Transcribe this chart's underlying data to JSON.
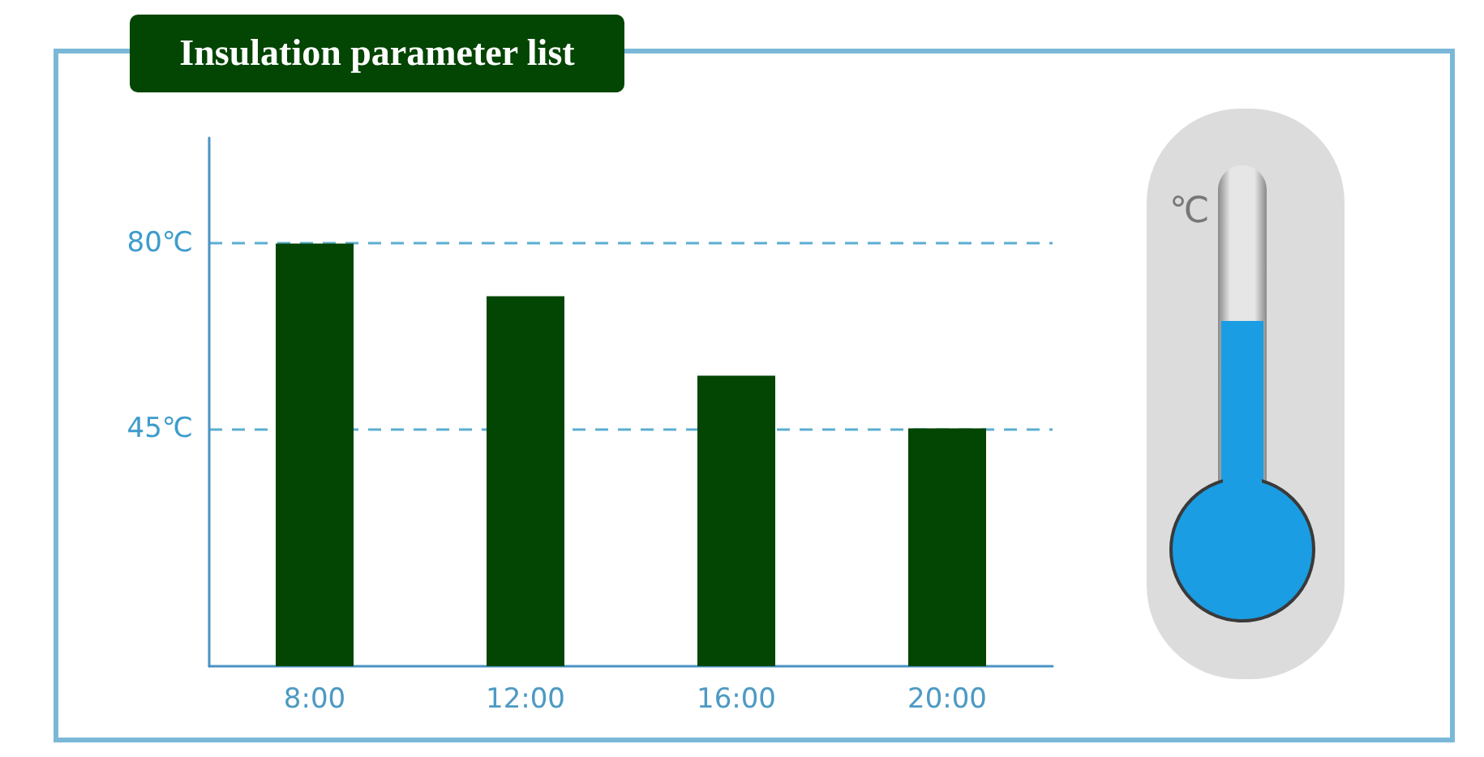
{
  "chart_data": {
    "type": "bar",
    "title": "Insulation parameter list",
    "categories": [
      "8:00",
      "12:00",
      "16:00",
      "20:00"
    ],
    "values": [
      80,
      70,
      55,
      45
    ],
    "color": "#034503",
    "ylim": [
      0,
      100
    ],
    "yticks": [
      {
        "value": 45,
        "label": "45℃"
      },
      {
        "value": 80,
        "label": "80℃"
      }
    ],
    "grid": "y",
    "annotations": [
      "℃"
    ]
  }
}
